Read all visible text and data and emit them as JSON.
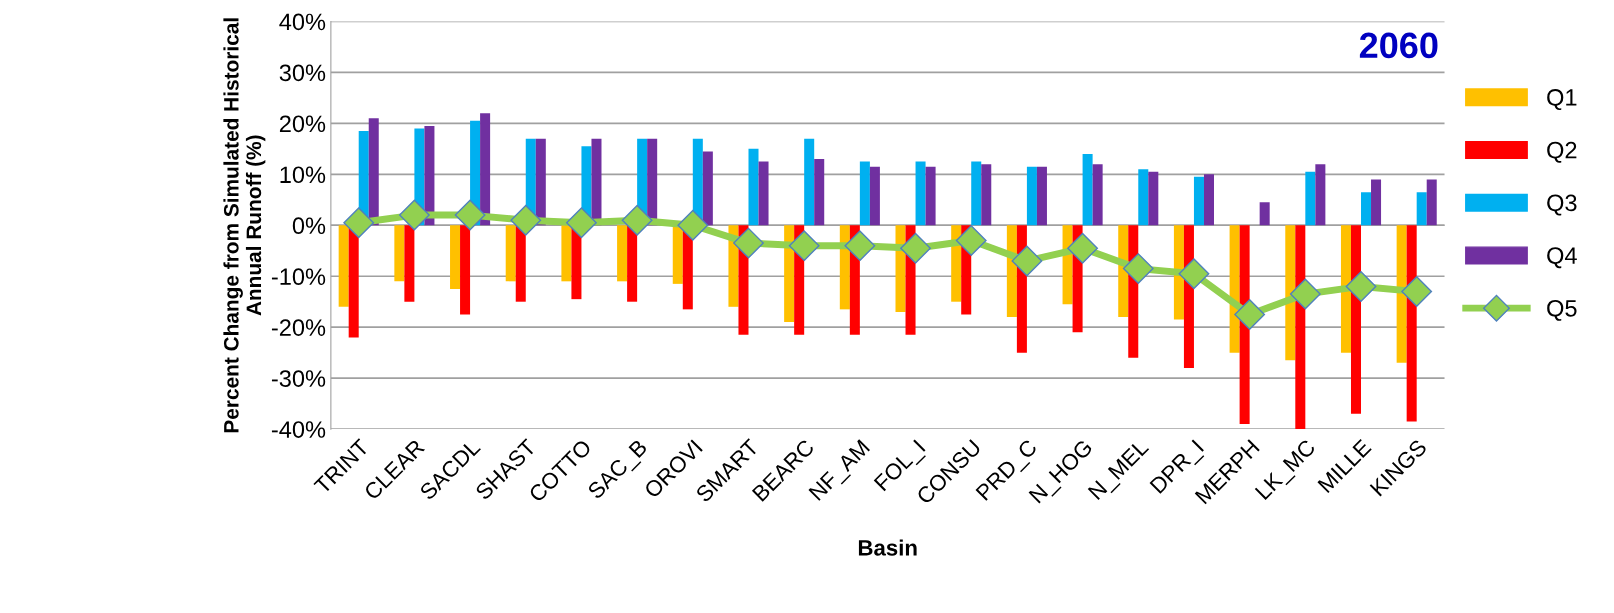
{
  "chart_data": {
    "type": "bar",
    "xlabel": "Basin",
    "ylabel": "Percent Change from Simulated Historical\nAnnual Runoff (%)",
    "annotations": [
      "2060"
    ],
    "categories": [
      "TRINT",
      "CLEAR",
      "SACDL",
      "SHAST",
      "COTTO",
      "SAC_B",
      "OROVI",
      "SMART",
      "BEARC",
      "NF_AM",
      "FOL_I",
      "CONSU",
      "PRD_C",
      "N_HOG",
      "N_MEL",
      "DPR_I",
      "MERPH",
      "LK_MC",
      "MILLE",
      "KINGS"
    ],
    "series": [
      {
        "name": "Q1",
        "color": "#ffc000",
        "values": [
          -16,
          -11,
          -12.5,
          -11,
          -11,
          -11,
          -11.5,
          -16,
          -19,
          -16.5,
          -17,
          -15,
          -18,
          -15.5,
          -18,
          -18.5,
          -25,
          -26.5,
          -25,
          -27
        ]
      },
      {
        "name": "Q2",
        "color": "#ff0000",
        "values": [
          -22,
          -15,
          -17.5,
          -15,
          -14.5,
          -15,
          -16.5,
          -21.5,
          -21.5,
          -21.5,
          -21.5,
          -17.5,
          -25,
          -21,
          -26,
          -28,
          -39,
          -40,
          -37,
          -38.5
        ]
      },
      {
        "name": "Q3",
        "color": "#00b0f0",
        "values": [
          18.5,
          19,
          20.5,
          17,
          15.5,
          17,
          17,
          15,
          17,
          12.5,
          12.5,
          12.5,
          11.5,
          14,
          11,
          9.5,
          0,
          10.5,
          6.5,
          6.5
        ]
      },
      {
        "name": "Q4",
        "color": "#7030a0",
        "values": [
          21,
          19.5,
          22,
          17,
          17,
          17,
          14.5,
          12.5,
          13,
          11.5,
          11.5,
          12,
          11.5,
          12,
          10.5,
          10,
          4.5,
          12,
          9,
          9
        ]
      },
      {
        "name": "Q5",
        "color": "#92d050",
        "type": "line",
        "values": [
          0.5,
          2,
          2,
          1,
          0.5,
          1,
          0,
          -3.5,
          -4,
          -4,
          -4.5,
          -3,
          -7,
          -4.5,
          -8.5,
          -9.5,
          -17.5,
          -13.5,
          -12,
          -13
        ]
      }
    ],
    "ylim": [
      -40,
      40
    ],
    "yticks": [
      {
        "value": -40,
        "label": "-40%"
      },
      {
        "value": -30,
        "label": "-30%"
      },
      {
        "value": -20,
        "label": "-20%"
      },
      {
        "value": -10,
        "label": "-10%"
      },
      {
        "value": 0,
        "label": "0%"
      },
      {
        "value": 10,
        "label": "10%"
      },
      {
        "value": 20,
        "label": "20%"
      },
      {
        "value": 30,
        "label": "30%"
      },
      {
        "value": 40,
        "label": "40%"
      }
    ],
    "grid": "y",
    "legend": "right",
    "marker": "diamond"
  }
}
